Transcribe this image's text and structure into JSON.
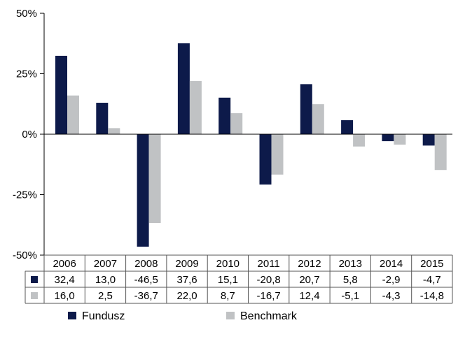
{
  "chart_data": {
    "type": "bar",
    "categories": [
      "2006",
      "2007",
      "2008",
      "2009",
      "2010",
      "2011",
      "2012",
      "2013",
      "2014",
      "2015"
    ],
    "series": [
      {
        "name": "Fundusz",
        "values": [
          32.4,
          13.0,
          -46.5,
          37.6,
          15.1,
          -20.8,
          20.7,
          5.8,
          -2.9,
          -4.7
        ],
        "labels": [
          "32,4",
          "13,0",
          "-46,5",
          "37,6",
          "15,1",
          "-20,8",
          "20,7",
          "5,8",
          "-2,9",
          "-4,7"
        ]
      },
      {
        "name": "Benchmark",
        "values": [
          16.0,
          2.5,
          -36.7,
          22.0,
          8.7,
          -16.7,
          12.4,
          -5.1,
          -4.3,
          -14.8
        ],
        "labels": [
          "16,0",
          "2,5",
          "-36,7",
          "22,0",
          "8,7",
          "-16,7",
          "12,4",
          "-5,1",
          "-4,3",
          "-14,8"
        ]
      }
    ],
    "ylim": [
      -50,
      50
    ],
    "yticks": [
      50,
      25,
      0,
      -25,
      -50
    ],
    "ytick_labels": [
      "50%",
      "25%",
      "0%",
      "-25%",
      "-50%"
    ],
    "grid": false,
    "legend_position": "bottom",
    "data_table": true
  },
  "colors": {
    "Fundusz": "#0d1a4a",
    "Benchmark": "#c0c2c4",
    "axis": "#000000",
    "table_border": "#555555"
  }
}
